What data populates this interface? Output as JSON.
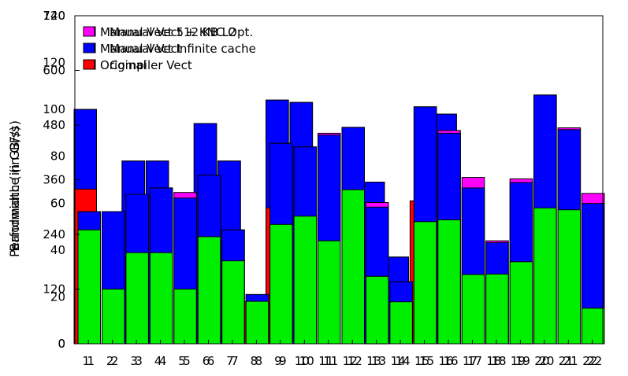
{
  "chart_data": {
    "type": "bar",
    "note": "Two overlaid charts rendered on the same axes (ghosting).",
    "categories": [
      "1",
      "2",
      "3",
      "4",
      "5",
      "6",
      "7",
      "8",
      "9",
      "10",
      "11",
      "12",
      "13",
      "14",
      "15",
      "16",
      "17",
      "18",
      "19",
      "20",
      "21",
      "22"
    ],
    "left_axis": {
      "tick_labels": [
        "0",
        "120",
        "240",
        "360",
        "480",
        "600",
        "720"
      ],
      "ylim": [
        0,
        720
      ]
    },
    "right_axis": {
      "tick_labels": [
        "0",
        "20",
        "40",
        "60",
        "80",
        "100",
        "120",
        "140"
      ],
      "ylim": [
        0,
        140
      ]
    },
    "ylabels": [
      "Bandwidth (in GB/s)",
      "Performance (in GF/s)"
    ],
    "charts": [
      {
        "axis": "left",
        "legend": [
          "Manual Vect + KNC Opt.",
          "Manual Vect",
          "Compiler Vect"
        ],
        "colors": [
          "#ff00ff",
          "#0000ff",
          "#00ee00"
        ],
        "series": [
          {
            "name": "Compiler Vect",
            "values": [
              250,
              120,
              200,
              200,
              120,
              235,
              182,
              93,
              262,
              280,
              226,
              338,
              148,
              92,
              268,
              272,
              152,
              153,
              180,
              298,
              294,
              78
            ]
          },
          {
            "name": "Manual Vect",
            "values": [
              290,
              290,
              328,
              342,
              320,
              370,
              250,
              108,
              440,
              432,
              458,
              475,
              300,
              136,
              520,
              462,
              342,
              222,
              354,
              546,
              470,
              308
            ]
          },
          {
            "name": "Manual Vect + KNC Opt.",
            "values": [
              290,
              290,
              328,
              342,
              332,
              370,
              250,
              108,
              440,
              432,
              462,
              475,
              310,
              136,
              520,
              468,
              365,
              226,
              362,
              546,
              474,
              330
            ]
          }
        ]
      },
      {
        "axis": "right",
        "legend": [
          "Manual Vect 512 KB L2",
          "Manual Vect Infinite cache",
          "Original"
        ],
        "colors": [
          "#ff00ff",
          "#0000ff",
          "#ff0000"
        ],
        "series": [
          {
            "name": "Original",
            "values": [
              66,
              0,
              0,
              0,
              0,
              0,
              0,
              18,
              58,
              0,
              0,
              0,
              0,
              0,
              61,
              0,
              0,
              0,
              0,
              0,
              0,
              0
            ]
          },
          {
            "name": "Manual Vect Infinite cache",
            "values": [
              100,
              0,
              78,
              78,
              0,
              94,
              78,
              0,
              104,
              103,
              0,
              0,
              69,
              37,
              0,
              98,
              0,
              0,
              0,
              0,
              0,
              0
            ]
          },
          {
            "name": "Manual Vect 512 KB L2",
            "values": [
              100,
              0,
              78,
              78,
              0,
              94,
              78,
              0,
              104,
              103,
              0,
              0,
              69,
              37,
              0,
              98,
              0,
              0,
              0,
              0,
              0,
              0
            ]
          }
        ]
      }
    ],
    "legend_placement": "top-left",
    "grid": false
  }
}
